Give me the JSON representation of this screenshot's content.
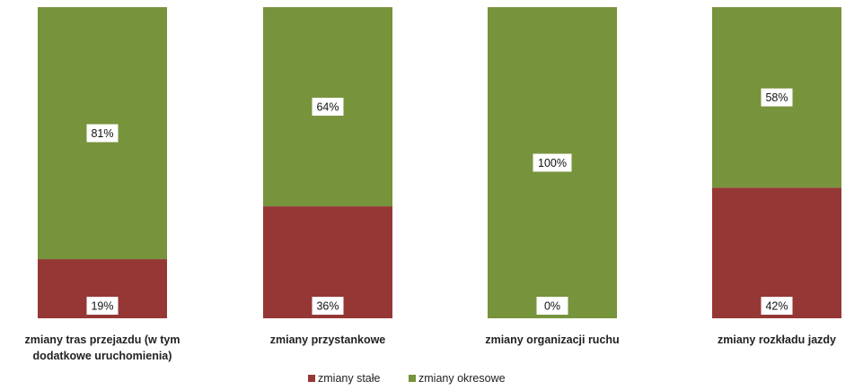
{
  "chart_data": {
    "type": "bar",
    "stacked": true,
    "percent": true,
    "categories": [
      [
        "zmiany tras przejazdu (w tym",
        "dodatkowe uruchomienia)"
      ],
      [
        "zmiany przystankowe"
      ],
      [
        "zmiany organizacji ruchu"
      ],
      [
        "zmiany rozkładu jazdy"
      ]
    ],
    "series": [
      {
        "name": "zmiany stałe",
        "color": "#953735",
        "values": [
          19,
          36,
          0,
          42
        ],
        "labels": [
          "19%",
          "36%",
          "0%",
          "42%"
        ]
      },
      {
        "name": "zmiany okresowe",
        "color": "#77933C",
        "values": [
          81,
          64,
          100,
          58
        ],
        "labels": [
          "81%",
          "64%",
          "100%",
          "58%"
        ]
      }
    ],
    "ylim": [
      0,
      100
    ],
    "grid": false,
    "legend_position": "bottom-center"
  }
}
